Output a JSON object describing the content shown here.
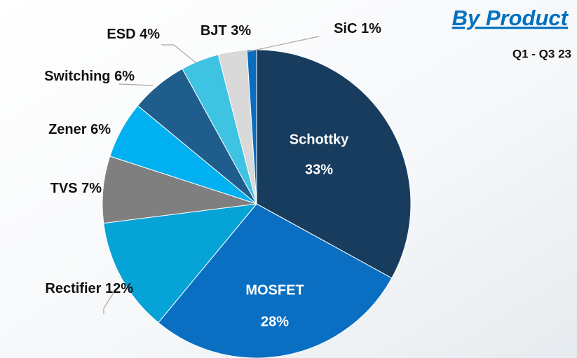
{
  "chart_data": {
    "type": "pie",
    "title": "By Product",
    "subtitle": "Q1 - Q3 23",
    "categories": [
      "Schottky",
      "MOSFET",
      "Rectifier",
      "TVS",
      "Zener",
      "Switching",
      "ESD",
      "BJT",
      "SiC"
    ],
    "values": [
      33,
      28,
      12,
      7,
      6,
      6,
      4,
      3,
      1
    ],
    "value_labels": [
      "33%",
      "28%",
      "12%",
      "7%",
      "6%",
      "6%",
      "4%",
      "3%",
      "1%"
    ],
    "colors": [
      "#173c5e",
      "#0a6fc2",
      "#05a3d6",
      "#7f7f7f",
      "#00b0f0",
      "#1f5d8c",
      "#3ec3e2",
      "#d9d9d9",
      "#0b6cc0"
    ]
  }
}
